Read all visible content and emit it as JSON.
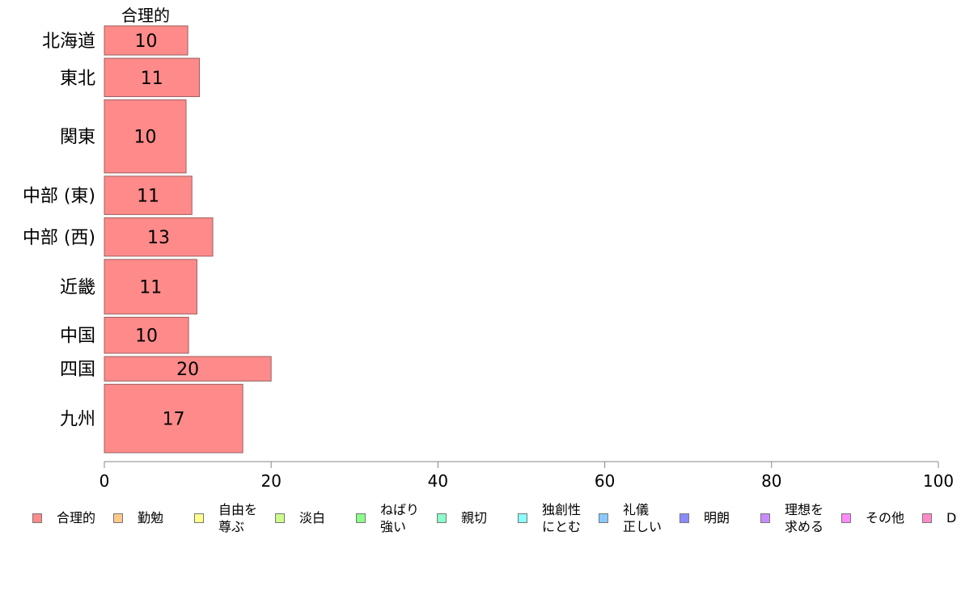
{
  "chart_data": {
    "type": "bar",
    "orientation": "horizontal",
    "title": "合理的",
    "categories": [
      "北海道",
      "東北",
      "関東",
      "中部 (東)",
      "中部 (西)",
      "近畿",
      "中国",
      "四国",
      "九州"
    ],
    "series": [
      {
        "name": "合理的",
        "values": [
          10,
          11.4,
          9.8,
          10.5,
          13,
          11.1,
          10.1,
          20,
          16.6
        ],
        "labels": [
          "10",
          "11",
          "10",
          "11",
          "13",
          "11",
          "10",
          "20",
          "17"
        ]
      }
    ],
    "category_weights": [
      0.7,
      0.9,
      1.65,
      0.9,
      0.9,
      1.25,
      0.85,
      0.6,
      1.55
    ],
    "xlim": [
      0,
      100
    ],
    "xticks": [
      "0",
      "20",
      "40",
      "60",
      "80",
      "100"
    ],
    "grid": false,
    "legend_position": "bottom",
    "legend": [
      {
        "label": "合理的",
        "color": "#ff8a8a"
      },
      {
        "label": "勤勉",
        "color": "#ffc98a"
      },
      {
        "label": "自由を\n尊ぶ",
        "color": "#ffff8a"
      },
      {
        "label": "淡白",
        "color": "#c9ff8a"
      },
      {
        "label": "ねばり\n強い",
        "color": "#8aff8a"
      },
      {
        "label": "親切",
        "color": "#8affc9"
      },
      {
        "label": "独創性\nにとむ",
        "color": "#8affff"
      },
      {
        "label": "礼儀\n正しい",
        "color": "#8ac9ff"
      },
      {
        "label": "明朗",
        "color": "#8a8aff"
      },
      {
        "label": "理想を\n求める",
        "color": "#c98aff"
      },
      {
        "label": "その他",
        "color": "#ff8aff"
      },
      {
        "label": "D",
        "color": "#ff8ac9"
      }
    ]
  }
}
